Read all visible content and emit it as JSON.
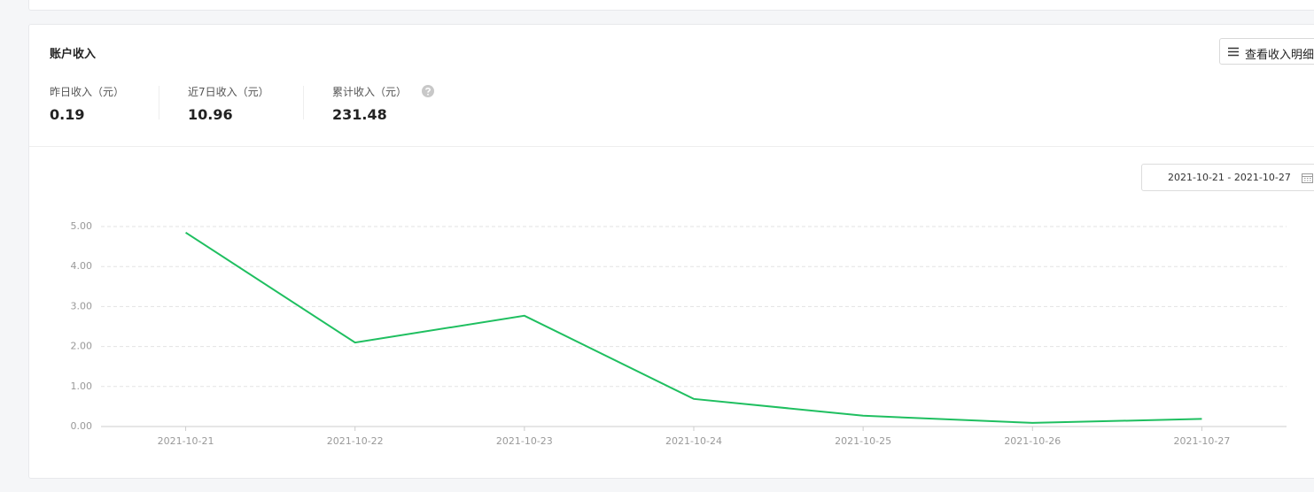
{
  "header": {
    "title": "账户收入",
    "button": "查看收入明细"
  },
  "stats": [
    {
      "label": "昨日收入（元）",
      "value": 0.19
    },
    {
      "label": "近7日收入（元）",
      "value": 10.96
    },
    {
      "label": "累计收入（元）",
      "value": 231.48
    }
  ],
  "date_range": "2021-10-21 - 2021-10-27",
  "chart_data": {
    "type": "line",
    "categories": [
      "2021-10-21",
      "2021-10-22",
      "2021-10-23",
      "2021-10-24",
      "2021-10-25",
      "2021-10-26",
      "2021-10-27"
    ],
    "values": [
      4.85,
      2.1,
      2.77,
      0.69,
      0.27,
      0.09,
      0.19
    ],
    "color": "#1fbf60",
    "ylim": [
      0,
      5
    ],
    "yticks": [
      {
        "value": 0,
        "label": "0.00"
      },
      {
        "value": 1,
        "label": "1.00"
      },
      {
        "value": 2,
        "label": "2.00"
      },
      {
        "value": 3,
        "label": "3.00"
      },
      {
        "value": 4,
        "label": "4.00"
      },
      {
        "value": 5,
        "label": "5.00"
      }
    ],
    "grid": true
  }
}
